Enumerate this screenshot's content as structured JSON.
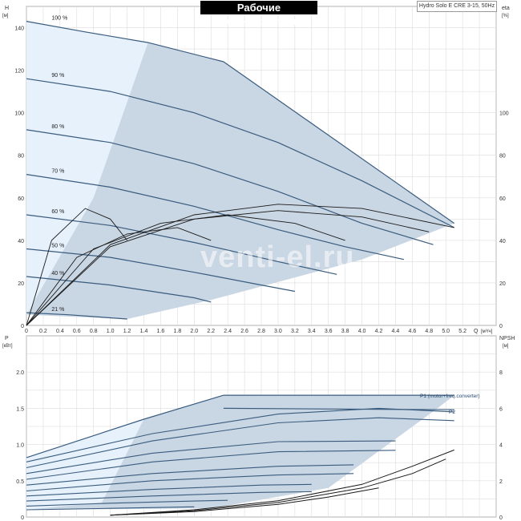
{
  "header": {
    "title": "Рабочие характеристики",
    "model": "Hydro Solo E CRE 3-15, 50Hz"
  },
  "watermark": "venti-el.ru",
  "colors": {
    "envelope_fill": "#c9d6e3",
    "envelope_light": "#e6f1fb",
    "curve_blue": "#3a5c7e",
    "curve_black": "#1a1a1a",
    "grid": "#dcdcdc"
  },
  "chart_data": [
    {
      "type": "line",
      "name": "head",
      "ylabel": "H",
      "yunit": "[м]",
      "y2label": "eta",
      "y2unit": "[%]",
      "xlabel": "Q",
      "xunit": "[м³/ч]",
      "xlim": [
        0,
        5.6
      ],
      "ylim": [
        0,
        150
      ],
      "y2lim": [
        0,
        150
      ],
      "grid": true,
      "x_ticks": [
        "0",
        "0.2",
        "0.4",
        "0.6",
        "0.8",
        "1.0",
        "1.2",
        "1.4",
        "1.6",
        "1.8",
        "2.0",
        "2.2",
        "2.4",
        "2.6",
        "2.8",
        "3.0",
        "3.2",
        "3.4",
        "3.6",
        "3.8",
        "4.0",
        "4.2",
        "4.4",
        "4.6",
        "4.8",
        "5.0",
        "5.2"
      ],
      "y_ticks": [
        "0",
        "20",
        "40",
        "60",
        "80",
        "100",
        "120",
        "140"
      ],
      "y2_ticks": [
        "0",
        "20",
        "40",
        "60",
        "80",
        "100"
      ],
      "envelope": [
        [
          0,
          143
        ],
        [
          1.45,
          133
        ],
        [
          2.35,
          124
        ],
        [
          5.1,
          48
        ],
        [
          4.0,
          31
        ],
        [
          2.2,
          12
        ],
        [
          1.2,
          3
        ],
        [
          0,
          5
        ]
      ],
      "series": [
        {
          "name": "100 %",
          "x": [
            0,
            0.7,
            1.45,
            2.35
          ],
          "y": [
            143,
            138,
            133,
            124
          ]
        },
        {
          "name": "90 %",
          "x": [
            0,
            1.0,
            2.0,
            3.0,
            4.0,
            5.1
          ],
          "y": [
            116,
            110,
            100,
            86,
            68,
            46
          ]
        },
        {
          "name": "80 %",
          "x": [
            0,
            1.0,
            2.0,
            3.0,
            4.0,
            4.85
          ],
          "y": [
            92,
            86,
            76,
            63,
            48,
            38
          ]
        },
        {
          "name": "70 %",
          "x": [
            0,
            1.0,
            2.0,
            3.0,
            3.8,
            4.5
          ],
          "y": [
            71,
            65,
            56,
            45,
            37,
            31
          ]
        },
        {
          "name": "60 %",
          "x": [
            0,
            1.0,
            2.0,
            3.0,
            3.7
          ],
          "y": [
            52,
            47,
            39,
            30,
            24
          ]
        },
        {
          "name": "50 %",
          "x": [
            0,
            1.0,
            2.0,
            2.8,
            3.2
          ],
          "y": [
            36,
            32,
            25,
            19,
            16
          ]
        },
        {
          "name": "40 %",
          "x": [
            0,
            1.0,
            2.0,
            2.2
          ],
          "y": [
            23,
            19,
            13,
            11
          ]
        },
        {
          "name": "21 %",
          "x": [
            0,
            0.5,
            1.2
          ],
          "y": [
            6,
            5,
            3
          ]
        }
      ],
      "efficiency_series": [
        {
          "name": "eta 100 %",
          "x": [
            0,
            1.0,
            2.0,
            3.0,
            4.0,
            5.1
          ],
          "y": [
            0,
            38,
            52,
            57,
            55,
            46
          ]
        },
        {
          "name": "eta 80 %",
          "x": [
            0,
            1.0,
            2.0,
            3.0,
            4.0,
            4.8
          ],
          "y": [
            0,
            37,
            50,
            54,
            51,
            44
          ]
        },
        {
          "name": "eta 60 %",
          "x": [
            0,
            0.8,
            1.6,
            2.4,
            3.2,
            3.8
          ],
          "y": [
            0,
            36,
            48,
            52,
            48,
            40
          ]
        },
        {
          "name": "eta 40 %",
          "x": [
            0,
            0.6,
            1.2,
            1.8,
            2.2
          ],
          "y": [
            0,
            32,
            43,
            46,
            40
          ]
        },
        {
          "name": "eta 21 %",
          "x": [
            0,
            0.3,
            0.7,
            1.0,
            1.2
          ],
          "y": [
            0,
            40,
            55,
            50,
            40
          ]
        }
      ],
      "annotations": [
        "100 %",
        "90 %",
        "80 %",
        "70 %",
        "60 %",
        "50 %",
        "40 %",
        "21 %"
      ]
    },
    {
      "type": "line",
      "name": "power",
      "ylabel": "P",
      "yunit": "[кВт]",
      "y2label": "NPSH",
      "y2unit": "[м]",
      "xlim": [
        0,
        5.6
      ],
      "ylim": [
        0,
        2.5
      ],
      "y2lim": [
        0,
        10
      ],
      "grid": true,
      "y_ticks": [
        "0",
        "0.5",
        "1.0",
        "1.5",
        "2.0"
      ],
      "y2_ticks": [
        "0",
        "2",
        "4",
        "6",
        "8"
      ],
      "envelope": [
        [
          0,
          0.82
        ],
        [
          1.4,
          1.35
        ],
        [
          2.35,
          1.68
        ],
        [
          5.1,
          1.68
        ],
        [
          4.9,
          1.5
        ],
        [
          3.6,
          0.4
        ],
        [
          2.2,
          0.12
        ],
        [
          0,
          0.1
        ]
      ],
      "legend": [
        "P1 (motor+freq.converter)",
        "P2"
      ],
      "series": [
        {
          "name": "P1",
          "x": [
            2.35,
            5.1
          ],
          "y": [
            1.68,
            1.68
          ]
        },
        {
          "name": "P2",
          "x": [
            2.35,
            5.1
          ],
          "y": [
            1.5,
            1.48
          ]
        }
      ],
      "power_curves": [
        {
          "x": [
            0,
            1.5,
            3.0,
            4.2,
            5.1
          ],
          "y": [
            0.76,
            1.15,
            1.42,
            1.5,
            1.45
          ]
        },
        {
          "x": [
            0,
            1.5,
            3.0,
            4.2,
            5.1
          ],
          "y": [
            0.68,
            1.05,
            1.3,
            1.37,
            1.33
          ]
        },
        {
          "x": [
            0,
            1.5,
            3.0,
            4.4
          ],
          "y": [
            0.6,
            0.88,
            1.04,
            1.05
          ]
        },
        {
          "x": [
            0,
            1.5,
            3.0,
            4.4
          ],
          "y": [
            0.52,
            0.76,
            0.9,
            0.92
          ]
        },
        {
          "x": [
            0,
            1.5,
            3.0,
            3.9
          ],
          "y": [
            0.44,
            0.6,
            0.7,
            0.72
          ]
        },
        {
          "x": [
            0,
            1.5,
            3.0,
            3.9
          ],
          "y": [
            0.36,
            0.5,
            0.58,
            0.6
          ]
        },
        {
          "x": [
            0,
            1.5,
            2.8,
            3.4
          ],
          "y": [
            0.29,
            0.38,
            0.44,
            0.45
          ]
        },
        {
          "x": [
            0,
            1.5,
            2.8,
            3.4
          ],
          "y": [
            0.22,
            0.29,
            0.34,
            0.35
          ]
        },
        {
          "x": [
            0,
            1.0,
            2.0,
            2.4
          ],
          "y": [
            0.15,
            0.19,
            0.22,
            0.23
          ]
        },
        {
          "x": [
            0,
            1.0,
            2.0
          ],
          "y": [
            0.1,
            0.12,
            0.14
          ]
        }
      ],
      "npsh_series": [
        {
          "x": [
            1.0,
            2.0,
            3.0,
            4.0,
            4.6,
            5.1
          ],
          "y": [
            0.1,
            0.4,
            0.9,
            1.8,
            2.8,
            3.7
          ]
        },
        {
          "x": [
            1.0,
            2.0,
            3.0,
            4.0,
            4.6,
            5.0
          ],
          "y": [
            0.1,
            0.35,
            0.8,
            1.6,
            2.4,
            3.2
          ]
        },
        {
          "x": [
            1.0,
            2.0,
            3.0,
            3.6,
            4.2
          ],
          "y": [
            0.1,
            0.3,
            0.7,
            1.1,
            1.6
          ]
        }
      ]
    }
  ]
}
